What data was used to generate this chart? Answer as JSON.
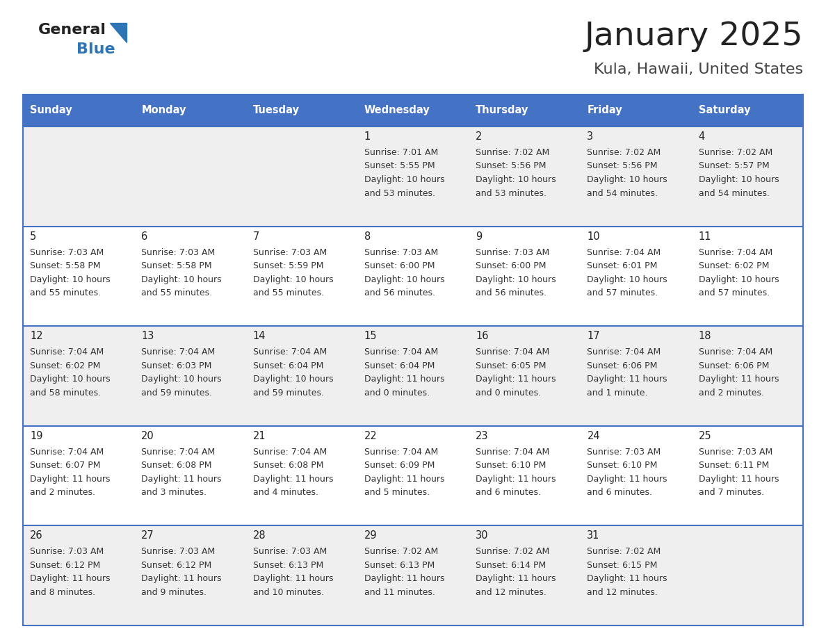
{
  "title": "January 2025",
  "subtitle": "Kula, Hawaii, United States",
  "header_color": "#4472C4",
  "header_text_color": "#FFFFFF",
  "day_names": [
    "Sunday",
    "Monday",
    "Tuesday",
    "Wednesday",
    "Thursday",
    "Friday",
    "Saturday"
  ],
  "bg_color": "#FFFFFF",
  "cell_bg_even": "#EFEFEF",
  "cell_bg_odd": "#FFFFFF",
  "border_color": "#4472C4",
  "title_color": "#222222",
  "subtitle_color": "#444444",
  "day_num_color": "#222222",
  "cell_text_color": "#333333",
  "weeks": [
    [
      {
        "day": "",
        "info": ""
      },
      {
        "day": "",
        "info": ""
      },
      {
        "day": "",
        "info": ""
      },
      {
        "day": "1",
        "info": "Sunrise: 7:01 AM\nSunset: 5:55 PM\nDaylight: 10 hours\nand 53 minutes."
      },
      {
        "day": "2",
        "info": "Sunrise: 7:02 AM\nSunset: 5:56 PM\nDaylight: 10 hours\nand 53 minutes."
      },
      {
        "day": "3",
        "info": "Sunrise: 7:02 AM\nSunset: 5:56 PM\nDaylight: 10 hours\nand 54 minutes."
      },
      {
        "day": "4",
        "info": "Sunrise: 7:02 AM\nSunset: 5:57 PM\nDaylight: 10 hours\nand 54 minutes."
      }
    ],
    [
      {
        "day": "5",
        "info": "Sunrise: 7:03 AM\nSunset: 5:58 PM\nDaylight: 10 hours\nand 55 minutes."
      },
      {
        "day": "6",
        "info": "Sunrise: 7:03 AM\nSunset: 5:58 PM\nDaylight: 10 hours\nand 55 minutes."
      },
      {
        "day": "7",
        "info": "Sunrise: 7:03 AM\nSunset: 5:59 PM\nDaylight: 10 hours\nand 55 minutes."
      },
      {
        "day": "8",
        "info": "Sunrise: 7:03 AM\nSunset: 6:00 PM\nDaylight: 10 hours\nand 56 minutes."
      },
      {
        "day": "9",
        "info": "Sunrise: 7:03 AM\nSunset: 6:00 PM\nDaylight: 10 hours\nand 56 minutes."
      },
      {
        "day": "10",
        "info": "Sunrise: 7:04 AM\nSunset: 6:01 PM\nDaylight: 10 hours\nand 57 minutes."
      },
      {
        "day": "11",
        "info": "Sunrise: 7:04 AM\nSunset: 6:02 PM\nDaylight: 10 hours\nand 57 minutes."
      }
    ],
    [
      {
        "day": "12",
        "info": "Sunrise: 7:04 AM\nSunset: 6:02 PM\nDaylight: 10 hours\nand 58 minutes."
      },
      {
        "day": "13",
        "info": "Sunrise: 7:04 AM\nSunset: 6:03 PM\nDaylight: 10 hours\nand 59 minutes."
      },
      {
        "day": "14",
        "info": "Sunrise: 7:04 AM\nSunset: 6:04 PM\nDaylight: 10 hours\nand 59 minutes."
      },
      {
        "day": "15",
        "info": "Sunrise: 7:04 AM\nSunset: 6:04 PM\nDaylight: 11 hours\nand 0 minutes."
      },
      {
        "day": "16",
        "info": "Sunrise: 7:04 AM\nSunset: 6:05 PM\nDaylight: 11 hours\nand 0 minutes."
      },
      {
        "day": "17",
        "info": "Sunrise: 7:04 AM\nSunset: 6:06 PM\nDaylight: 11 hours\nand 1 minute."
      },
      {
        "day": "18",
        "info": "Sunrise: 7:04 AM\nSunset: 6:06 PM\nDaylight: 11 hours\nand 2 minutes."
      }
    ],
    [
      {
        "day": "19",
        "info": "Sunrise: 7:04 AM\nSunset: 6:07 PM\nDaylight: 11 hours\nand 2 minutes."
      },
      {
        "day": "20",
        "info": "Sunrise: 7:04 AM\nSunset: 6:08 PM\nDaylight: 11 hours\nand 3 minutes."
      },
      {
        "day": "21",
        "info": "Sunrise: 7:04 AM\nSunset: 6:08 PM\nDaylight: 11 hours\nand 4 minutes."
      },
      {
        "day": "22",
        "info": "Sunrise: 7:04 AM\nSunset: 6:09 PM\nDaylight: 11 hours\nand 5 minutes."
      },
      {
        "day": "23",
        "info": "Sunrise: 7:04 AM\nSunset: 6:10 PM\nDaylight: 11 hours\nand 6 minutes."
      },
      {
        "day": "24",
        "info": "Sunrise: 7:03 AM\nSunset: 6:10 PM\nDaylight: 11 hours\nand 6 minutes."
      },
      {
        "day": "25",
        "info": "Sunrise: 7:03 AM\nSunset: 6:11 PM\nDaylight: 11 hours\nand 7 minutes."
      }
    ],
    [
      {
        "day": "26",
        "info": "Sunrise: 7:03 AM\nSunset: 6:12 PM\nDaylight: 11 hours\nand 8 minutes."
      },
      {
        "day": "27",
        "info": "Sunrise: 7:03 AM\nSunset: 6:12 PM\nDaylight: 11 hours\nand 9 minutes."
      },
      {
        "day": "28",
        "info": "Sunrise: 7:03 AM\nSunset: 6:13 PM\nDaylight: 11 hours\nand 10 minutes."
      },
      {
        "day": "29",
        "info": "Sunrise: 7:02 AM\nSunset: 6:13 PM\nDaylight: 11 hours\nand 11 minutes."
      },
      {
        "day": "30",
        "info": "Sunrise: 7:02 AM\nSunset: 6:14 PM\nDaylight: 11 hours\nand 12 minutes."
      },
      {
        "day": "31",
        "info": "Sunrise: 7:02 AM\nSunset: 6:15 PM\nDaylight: 11 hours\nand 12 minutes."
      },
      {
        "day": "",
        "info": ""
      }
    ]
  ],
  "logo_general_color": "#222222",
  "logo_blue_color": "#2E75B6",
  "logo_triangle_color": "#2E75B6"
}
